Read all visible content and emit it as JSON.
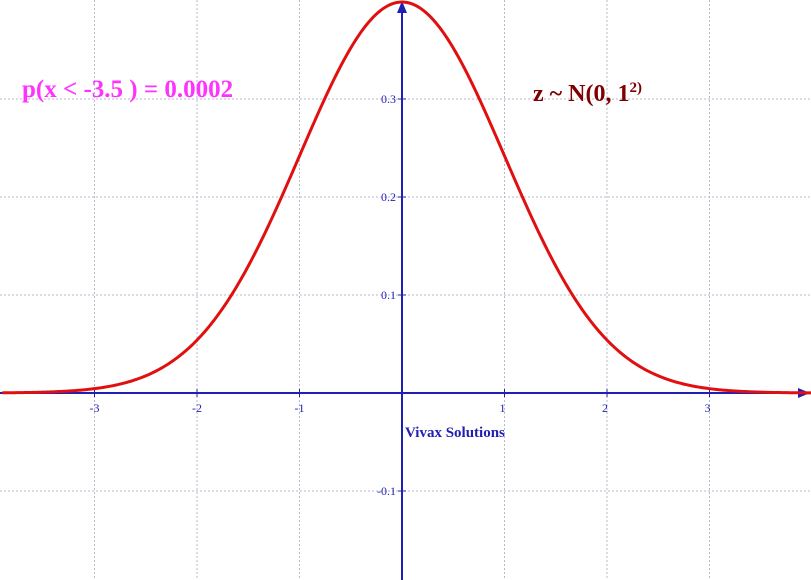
{
  "chart_data": {
    "type": "line",
    "title": "",
    "xlabel": "",
    "ylabel": "",
    "xlim": [
      -3.9,
      4.0
    ],
    "ylim": [
      -0.19,
      0.4
    ],
    "grid": true,
    "x_ticks": [
      -3,
      -2,
      -1,
      1,
      2,
      3
    ],
    "x_tick_labels": [
      "-3",
      "-2",
      "-1",
      "1",
      "2",
      "3"
    ],
    "y_ticks": [
      0.3,
      0.2,
      0.1,
      -0.1
    ],
    "y_tick_labels": [
      "0.3",
      "0.2",
      "0.1",
      "-0.1"
    ],
    "series": [
      {
        "x": [
          -3.9,
          -3.5,
          -3.0,
          -2.5,
          -2.0,
          -1.5,
          -1.0,
          -0.5,
          0.0,
          0.5,
          1.0,
          1.5,
          2.0,
          2.5,
          3.0,
          3.5,
          3.9
        ],
        "y": [
          0.0002,
          0.0009,
          0.0044,
          0.0175,
          0.054,
          0.1295,
          0.242,
          0.3521,
          0.3989,
          0.3521,
          0.242,
          0.1295,
          0.054,
          0.0175,
          0.0044,
          0.0009,
          0.0002
        ],
        "function": "normal_pdf",
        "mean": 0,
        "sd": 1
      }
    ],
    "annotations": {
      "probability": "p(x < -3.5 ) = 0.0002",
      "distribution_main": "z ~ N(0, 1",
      "distribution_sup": "2)",
      "watermark": "Vivax Solutions"
    },
    "colors": {
      "curve": "#e01010",
      "axes": "#1f1fb4",
      "grid": "#b8b8cc",
      "probability_text": "#ff33ff",
      "distribution_text": "#7f0000"
    }
  }
}
